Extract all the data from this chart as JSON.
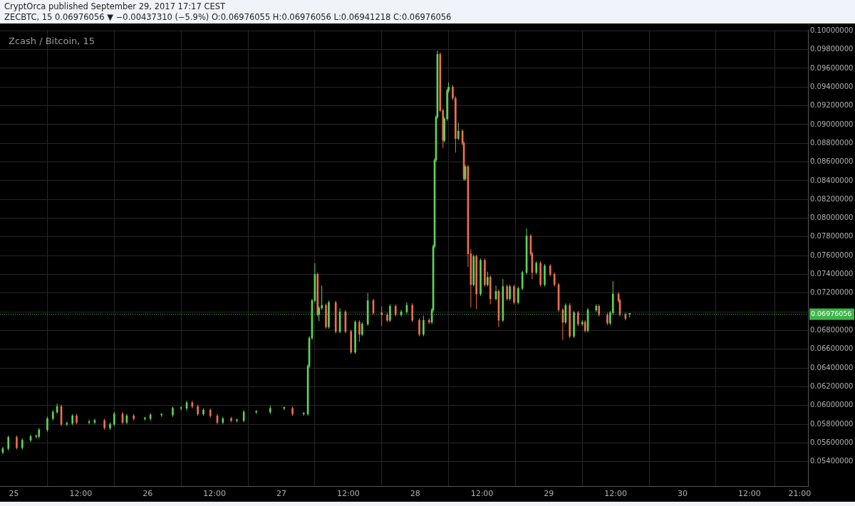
{
  "chart_data": {
    "type": "candlestick",
    "title": "Zcash / Bitcoin, 15",
    "annotations": [
      "CryptOrca published September 29, 2017 17:17 CEST",
      "ZECBTC, 15  0.06976056 ▼ −0.00437310 (−5.9%) O:0.06976055 H:0.06976056 L:0.06941218 C:0.06976056"
    ],
    "x": [
      "2017-09-24T22:00",
      "2017-09-24T23:00",
      "2017-09-25T00:30",
      "2017-09-25T01:30",
      "2017-09-25T03:00",
      "2017-09-25T04:00",
      "2017-09-25T04:30",
      "2017-09-25T06:00",
      "2017-09-25T07:00",
      "2017-09-25T07:45",
      "2017-09-25T08:30",
      "2017-09-25T09:30",
      "2017-09-25T10:30",
      "2017-09-25T11:15",
      "2017-09-25T13:30",
      "2017-09-25T14:30",
      "2017-09-25T16:15",
      "2017-09-25T17:15",
      "2017-09-25T18:00",
      "2017-09-25T19:30",
      "2017-09-25T20:15",
      "2017-09-25T21:30",
      "2017-09-25T23:30",
      "2017-09-26T00:30",
      "2017-09-26T02:30",
      "2017-09-26T04:30",
      "2017-09-26T06:00",
      "2017-09-26T07:00",
      "2017-09-26T08:00",
      "2017-09-26T09:00",
      "2017-09-26T10:00",
      "2017-09-26T11:15",
      "2017-09-26T12:30",
      "2017-09-26T13:30",
      "2017-09-26T15:00",
      "2017-09-26T16:00",
      "2017-09-26T17:15",
      "2017-09-26T19:30",
      "2017-09-26T22:00",
      "2017-09-27T00:30",
      "2017-09-27T02:00",
      "2017-09-27T04:00",
      "2017-09-27T04:45",
      "2017-09-27T05:00",
      "2017-09-27T05:30",
      "2017-09-27T06:00",
      "2017-09-27T06:30",
      "2017-09-27T06:45",
      "2017-09-27T07:15",
      "2017-09-27T08:00",
      "2017-09-27T08:30",
      "2017-09-27T09:45",
      "2017-09-27T10:30",
      "2017-09-27T11:30",
      "2017-09-27T12:30",
      "2017-09-27T13:15",
      "2017-09-27T14:00",
      "2017-09-27T14:30",
      "2017-09-27T15:30",
      "2017-09-27T16:30",
      "2017-09-27T18:00",
      "2017-09-27T19:00",
      "2017-09-27T19:30",
      "2017-09-27T20:30",
      "2017-09-27T21:30",
      "2017-09-27T22:30",
      "2017-09-27T23:30",
      "2017-09-28T00:45",
      "2017-09-28T01:30",
      "2017-09-28T02:30",
      "2017-09-28T03:00",
      "2017-09-28T03:15",
      "2017-09-28T03:30",
      "2017-09-28T03:45",
      "2017-09-28T04:00",
      "2017-09-28T04:30",
      "2017-09-28T05:00",
      "2017-09-28T05:15",
      "2017-09-28T05:45",
      "2017-09-28T06:00",
      "2017-09-28T06:45",
      "2017-09-28T07:15",
      "2017-09-28T07:45",
      "2017-09-28T08:30",
      "2017-09-28T08:45",
      "2017-09-28T09:00",
      "2017-09-28T09:30",
      "2017-09-28T10:00",
      "2017-09-28T10:30",
      "2017-09-28T11:00",
      "2017-09-28T11:45",
      "2017-09-28T12:30",
      "2017-09-28T13:00",
      "2017-09-28T13:30",
      "2017-09-28T14:30",
      "2017-09-28T15:00",
      "2017-09-28T15:45",
      "2017-09-28T16:30",
      "2017-09-28T17:00",
      "2017-09-28T17:45",
      "2017-09-28T18:30",
      "2017-09-28T19:15",
      "2017-09-28T20:00",
      "2017-09-28T20:45",
      "2017-09-28T21:00",
      "2017-09-28T21:45",
      "2017-09-28T22:30",
      "2017-09-28T23:15",
      "2017-09-29T00:15",
      "2017-09-29T01:00",
      "2017-09-29T01:45",
      "2017-09-29T02:30",
      "2017-09-29T03:00",
      "2017-09-29T03:45",
      "2017-09-29T04:30",
      "2017-09-29T05:15",
      "2017-09-29T06:00",
      "2017-09-29T06:30",
      "2017-09-29T07:00",
      "2017-09-29T08:30",
      "2017-09-29T09:00",
      "2017-09-29T10:30",
      "2017-09-29T11:00",
      "2017-09-29T11:30",
      "2017-09-29T12:30",
      "2017-09-29T12:45",
      "2017-09-29T13:45",
      "2017-09-29T14:30"
    ],
    "ohlc": [
      [
        0.055,
        0.0556,
        0.0548,
        0.0554
      ],
      [
        0.0554,
        0.0568,
        0.0552,
        0.0566
      ],
      [
        0.0566,
        0.0568,
        0.0553,
        0.0555
      ],
      [
        0.0555,
        0.0565,
        0.0553,
        0.0563
      ],
      [
        0.0563,
        0.0569,
        0.0561,
        0.0567
      ],
      [
        0.0567,
        0.0569,
        0.0565,
        0.0567
      ],
      [
        0.0567,
        0.0576,
        0.0565,
        0.0574
      ],
      [
        0.0574,
        0.0588,
        0.0572,
        0.0586
      ],
      [
        0.0586,
        0.0595,
        0.0584,
        0.0593
      ],
      [
        0.0593,
        0.0602,
        0.0591,
        0.0599
      ],
      [
        0.0599,
        0.0601,
        0.0578,
        0.058
      ],
      [
        0.058,
        0.0583,
        0.0578,
        0.0581
      ],
      [
        0.0581,
        0.0591,
        0.0579,
        0.0589
      ],
      [
        0.0589,
        0.0591,
        0.058,
        0.0582
      ],
      [
        0.0582,
        0.0585,
        0.058,
        0.0582
      ],
      [
        0.0582,
        0.0586,
        0.058,
        0.0584
      ],
      [
        0.0584,
        0.0586,
        0.0574,
        0.0576
      ],
      [
        0.0576,
        0.0582,
        0.0574,
        0.058
      ],
      [
        0.058,
        0.0593,
        0.0578,
        0.0591
      ],
      [
        0.0591,
        0.0593,
        0.058,
        0.0582
      ],
      [
        0.0582,
        0.0591,
        0.058,
        0.0589
      ],
      [
        0.0589,
        0.0591,
        0.0584,
        0.0586
      ],
      [
        0.0586,
        0.0588,
        0.0584,
        0.0586
      ],
      [
        0.0586,
        0.0592,
        0.0584,
        0.059
      ],
      [
        0.059,
        0.0592,
        0.0588,
        0.059
      ],
      [
        0.059,
        0.0599,
        0.0588,
        0.0597
      ],
      [
        0.0597,
        0.0599,
        0.0595,
        0.0597
      ],
      [
        0.0597,
        0.0605,
        0.0595,
        0.0603
      ],
      [
        0.0603,
        0.0605,
        0.0597,
        0.0599
      ],
      [
        0.0599,
        0.0601,
        0.0589,
        0.0591
      ],
      [
        0.0591,
        0.0597,
        0.0589,
        0.0595
      ],
      [
        0.0595,
        0.0597,
        0.0587,
        0.0589
      ],
      [
        0.0589,
        0.0591,
        0.058,
        0.0582
      ],
      [
        0.0582,
        0.0588,
        0.058,
        0.0586
      ],
      [
        0.0586,
        0.0588,
        0.0582,
        0.0584
      ],
      [
        0.0584,
        0.0586,
        0.0582,
        0.0584
      ],
      [
        0.0584,
        0.0595,
        0.0582,
        0.0593
      ],
      [
        0.0593,
        0.0595,
        0.0591,
        0.0593
      ],
      [
        0.0593,
        0.06,
        0.0591,
        0.0597
      ],
      [
        0.0597,
        0.0599,
        0.0595,
        0.0597
      ],
      [
        0.0597,
        0.0599,
        0.0589,
        0.0591
      ],
      [
        0.0591,
        0.0593,
        0.0589,
        0.0591
      ],
      [
        0.0591,
        0.0644,
        0.0589,
        0.0642
      ],
      [
        0.0642,
        0.0674,
        0.064,
        0.0672
      ],
      [
        0.0672,
        0.0714,
        0.067,
        0.0712
      ],
      [
        0.0712,
        0.0752,
        0.071,
        0.074
      ],
      [
        0.074,
        0.0742,
        0.0695,
        0.0697
      ],
      [
        0.0697,
        0.0706,
        0.069,
        0.0704
      ],
      [
        0.0704,
        0.0728,
        0.0702,
        0.0707
      ],
      [
        0.0707,
        0.0709,
        0.0682,
        0.0684
      ],
      [
        0.0684,
        0.0712,
        0.0682,
        0.071
      ],
      [
        0.071,
        0.0712,
        0.0677,
        0.0679
      ],
      [
        0.0679,
        0.0704,
        0.0677,
        0.07
      ],
      [
        0.07,
        0.0702,
        0.0677,
        0.0679
      ],
      [
        0.0679,
        0.0681,
        0.0655,
        0.0657
      ],
      [
        0.0657,
        0.0691,
        0.0655,
        0.0689
      ],
      [
        0.0689,
        0.0691,
        0.0668,
        0.0676
      ],
      [
        0.0676,
        0.0689,
        0.0674,
        0.0687
      ],
      [
        0.0687,
        0.072,
        0.0685,
        0.0712
      ],
      [
        0.0712,
        0.0714,
        0.0697,
        0.0699
      ],
      [
        0.0699,
        0.0706,
        0.0685,
        0.0697
      ],
      [
        0.0697,
        0.0699,
        0.0689,
        0.0691
      ],
      [
        0.0691,
        0.0708,
        0.0689,
        0.0706
      ],
      [
        0.0706,
        0.0708,
        0.0695,
        0.0697
      ],
      [
        0.0697,
        0.0702,
        0.0695,
        0.07
      ],
      [
        0.07,
        0.071,
        0.0698,
        0.0707
      ],
      [
        0.0707,
        0.0709,
        0.0689,
        0.0691
      ],
      [
        0.0691,
        0.0693,
        0.0674,
        0.0676
      ],
      [
        0.0676,
        0.0696,
        0.0674,
        0.0691
      ],
      [
        0.0691,
        0.0693,
        0.0687,
        0.0689
      ],
      [
        0.0689,
        0.0704,
        0.0687,
        0.0702
      ],
      [
        0.0702,
        0.0772,
        0.07,
        0.077
      ],
      [
        0.077,
        0.0864,
        0.0768,
        0.0862
      ],
      [
        0.0862,
        0.091,
        0.086,
        0.0908
      ],
      [
        0.0908,
        0.0979,
        0.0906,
        0.0975
      ],
      [
        0.0975,
        0.0977,
        0.0913,
        0.0915
      ],
      [
        0.0915,
        0.0917,
        0.0875,
        0.0883
      ],
      [
        0.0883,
        0.0908,
        0.0881,
        0.0906
      ],
      [
        0.0906,
        0.0938,
        0.0904,
        0.0936
      ],
      [
        0.0936,
        0.0945,
        0.0934,
        0.094
      ],
      [
        0.094,
        0.0942,
        0.0926,
        0.0928
      ],
      [
        0.0928,
        0.093,
        0.087,
        0.0885
      ],
      [
        0.0885,
        0.0902,
        0.0883,
        0.0893
      ],
      [
        0.0893,
        0.0895,
        0.0878,
        0.088
      ],
      [
        0.088,
        0.0882,
        0.084,
        0.0842
      ],
      [
        0.0842,
        0.0857,
        0.084,
        0.0855
      ],
      [
        0.0855,
        0.0857,
        0.0748,
        0.0762
      ],
      [
        0.0762,
        0.0767,
        0.0705,
        0.0729
      ],
      [
        0.0729,
        0.0761,
        0.0727,
        0.0759
      ],
      [
        0.0759,
        0.0761,
        0.0703,
        0.0719
      ],
      [
        0.0719,
        0.0757,
        0.0717,
        0.0755
      ],
      [
        0.0755,
        0.0757,
        0.0727,
        0.0729
      ],
      [
        0.0729,
        0.0743,
        0.0727,
        0.0737
      ],
      [
        0.0737,
        0.0739,
        0.0708,
        0.0714
      ],
      [
        0.0714,
        0.0728,
        0.0712,
        0.0722
      ],
      [
        0.0722,
        0.0724,
        0.0684,
        0.0691
      ],
      [
        0.0691,
        0.0735,
        0.0689,
        0.0727
      ],
      [
        0.0727,
        0.0729,
        0.0712,
        0.0714
      ],
      [
        0.0714,
        0.0729,
        0.0712,
        0.0727
      ],
      [
        0.0727,
        0.0729,
        0.0708,
        0.071
      ],
      [
        0.071,
        0.0727,
        0.0708,
        0.0725
      ],
      [
        0.0725,
        0.0744,
        0.0723,
        0.0742
      ],
      [
        0.0742,
        0.0789,
        0.074,
        0.0781
      ],
      [
        0.0781,
        0.0783,
        0.076,
        0.0762
      ],
      [
        0.0762,
        0.0764,
        0.0735,
        0.0742
      ],
      [
        0.0742,
        0.0754,
        0.074,
        0.0752
      ],
      [
        0.0752,
        0.0754,
        0.0727,
        0.0729
      ],
      [
        0.0729,
        0.0751,
        0.0727,
        0.0749
      ],
      [
        0.0749,
        0.0751,
        0.0738,
        0.074
      ],
      [
        0.074,
        0.0742,
        0.0727,
        0.0729
      ],
      [
        0.0729,
        0.0731,
        0.07,
        0.0702
      ],
      [
        0.0702,
        0.0704,
        0.067,
        0.0689
      ],
      [
        0.0689,
        0.0709,
        0.0687,
        0.0707
      ],
      [
        0.0707,
        0.0709,
        0.0672,
        0.0674
      ],
      [
        0.0674,
        0.0701,
        0.0672,
        0.0699
      ],
      [
        0.0699,
        0.0701,
        0.0685,
        0.0687
      ],
      [
        0.0687,
        0.0691,
        0.0685,
        0.0689
      ],
      [
        0.0689,
        0.0691,
        0.0678,
        0.068
      ],
      [
        0.068,
        0.0704,
        0.0678,
        0.0702
      ],
      [
        0.0702,
        0.0708,
        0.07,
        0.0706
      ],
      [
        0.0706,
        0.0708,
        0.0695,
        0.0697
      ],
      [
        0.0697,
        0.0699,
        0.0686,
        0.0688
      ],
      [
        0.0688,
        0.0701,
        0.0686,
        0.0699
      ],
      [
        0.0699,
        0.0733,
        0.0697,
        0.0719
      ],
      [
        0.0719,
        0.0721,
        0.071,
        0.0712
      ],
      [
        0.0712,
        0.0714,
        0.0695,
        0.0697
      ],
      [
        0.0697,
        0.0699,
        0.0691,
        0.0693
      ],
      [
        0.06976055,
        0.06976056,
        0.06941218,
        0.06976056
      ]
    ],
    "colors": [
      "#5fd35a",
      "#5fd35a",
      "#ef6f4f",
      "#5fd35a",
      "#5fd35a",
      "#5fd35a",
      "#5fd35a",
      "#5fd35a",
      "#5fd35a",
      "#5fd35a",
      "#ef6f4f",
      "#5fd35a",
      "#5fd35a",
      "#ef6f4f",
      "#5fd35a",
      "#5fd35a",
      "#ef6f4f",
      "#5fd35a",
      "#5fd35a",
      "#ef6f4f",
      "#5fd35a",
      "#ef6f4f",
      "#5fd35a",
      "#5fd35a",
      "#5fd35a",
      "#5fd35a",
      "#5fd35a",
      "#5fd35a",
      "#ef6f4f",
      "#ef6f4f",
      "#5fd35a",
      "#ef6f4f",
      "#ef6f4f",
      "#5fd35a",
      "#ef6f4f",
      "#5fd35a",
      "#5fd35a",
      "#5fd35a",
      "#5fd35a",
      "#5fd35a",
      "#ef6f4f",
      "#5fd35a",
      "#5fd35a",
      "#5fd35a",
      "#5fd35a",
      "#5fd35a",
      "#ef6f4f",
      "#5fd35a",
      "#5fd35a",
      "#ef6f4f",
      "#5fd35a",
      "#ef6f4f",
      "#5fd35a",
      "#ef6f4f",
      "#ef6f4f",
      "#5fd35a",
      "#ef6f4f",
      "#5fd35a",
      "#5fd35a",
      "#ef6f4f",
      "#ef6f4f",
      "#ef6f4f",
      "#5fd35a",
      "#ef6f4f",
      "#5fd35a",
      "#5fd35a",
      "#ef6f4f",
      "#ef6f4f",
      "#5fd35a",
      "#ef6f4f",
      "#5fd35a",
      "#5fd35a",
      "#5fd35a",
      "#5fd35a",
      "#5fd35a",
      "#ef6f4f",
      "#ef6f4f",
      "#5fd35a",
      "#5fd35a",
      "#5fd35a",
      "#ef6f4f",
      "#ef6f4f",
      "#5fd35a",
      "#ef6f4f",
      "#ef6f4f",
      "#5fd35a",
      "#ef6f4f",
      "#ef6f4f",
      "#5fd35a",
      "#ef6f4f",
      "#5fd35a",
      "#ef6f4f",
      "#5fd35a",
      "#ef6f4f",
      "#5fd35a",
      "#ef6f4f",
      "#5fd35a",
      "#ef6f4f",
      "#5fd35a",
      "#ef6f4f",
      "#5fd35a",
      "#5fd35a",
      "#5fd35a",
      "#ef6f4f",
      "#ef6f4f",
      "#5fd35a",
      "#ef6f4f",
      "#5fd35a",
      "#ef6f4f",
      "#ef6f4f",
      "#ef6f4f",
      "#ef6f4f",
      "#5fd35a",
      "#ef6f4f",
      "#5fd35a",
      "#ef6f4f",
      "#5fd35a",
      "#ef6f4f",
      "#5fd35a",
      "#5fd35a",
      "#ef6f4f",
      "#ef6f4f",
      "#5fd35a",
      "#5fd35a",
      "#ef6f4f",
      "#ef6f4f",
      "#ef6f4f",
      "#5fd35a"
    ],
    "xlim": [
      "2017-09-24T21:30",
      "2017-09-30T22:30"
    ],
    "xticks": [
      {
        "value": "2017-09-25",
        "label": "25"
      },
      {
        "value": "2017-09-25T12:00",
        "label": "12:00"
      },
      {
        "value": "2017-09-26",
        "label": "26"
      },
      {
        "value": "2017-09-26T12:00",
        "label": "12:00"
      },
      {
        "value": "2017-09-27",
        "label": "27"
      },
      {
        "value": "2017-09-27T12:00",
        "label": "12:00"
      },
      {
        "value": "2017-09-28",
        "label": "28"
      },
      {
        "value": "2017-09-28T12:00",
        "label": "12:00"
      },
      {
        "value": "2017-09-29",
        "label": "29"
      },
      {
        "value": "2017-09-29T12:00",
        "label": "12:00"
      },
      {
        "value": "2017-09-30",
        "label": "30"
      },
      {
        "value": "2017-09-30T12:00",
        "label": "12:00"
      },
      {
        "value": "2017-09-30T21:00",
        "label": "21:00"
      }
    ],
    "ylim": [
      0.0514,
      0.1001
    ],
    "yticks": [
      {
        "value": 0.054,
        "label": "0.05400000"
      },
      {
        "value": 0.056,
        "label": "0.05600000"
      },
      {
        "value": 0.058,
        "label": "0.05800000"
      },
      {
        "value": 0.06,
        "label": "0.06000000"
      },
      {
        "value": 0.062,
        "label": "0.06200000"
      },
      {
        "value": 0.064,
        "label": "0.06400000"
      },
      {
        "value": 0.066,
        "label": "0.06600000"
      },
      {
        "value": 0.068,
        "label": "0.06800000"
      },
      {
        "value": 0.07,
        "label": null
      },
      {
        "value": 0.072,
        "label": "0.07200000"
      },
      {
        "value": 0.074,
        "label": "0.07400000"
      },
      {
        "value": 0.076,
        "label": "0.07600000"
      },
      {
        "value": 0.078,
        "label": "0.07800000"
      },
      {
        "value": 0.08,
        "label": "0.08000000"
      },
      {
        "value": 0.082,
        "label": "0.08200000"
      },
      {
        "value": 0.084,
        "label": "0.08400000"
      },
      {
        "value": 0.086,
        "label": "0.08600000"
      },
      {
        "value": 0.088,
        "label": "0.08800000"
      },
      {
        "value": 0.09,
        "label": "0.09000000"
      },
      {
        "value": 0.092,
        "label": "0.09200000"
      },
      {
        "value": 0.094,
        "label": "0.09400000"
      },
      {
        "value": 0.096,
        "label": "0.09600000"
      },
      {
        "value": 0.098,
        "label": "0.09800000"
      },
      {
        "value": 0.1,
        "label": "0.10000000"
      }
    ],
    "grid": true,
    "ref_lines": [
      {
        "axis": "y",
        "value": 0.06976056,
        "label": "0.06976056",
        "color": "#3fb54a",
        "line_style": "dotted"
      }
    ]
  }
}
